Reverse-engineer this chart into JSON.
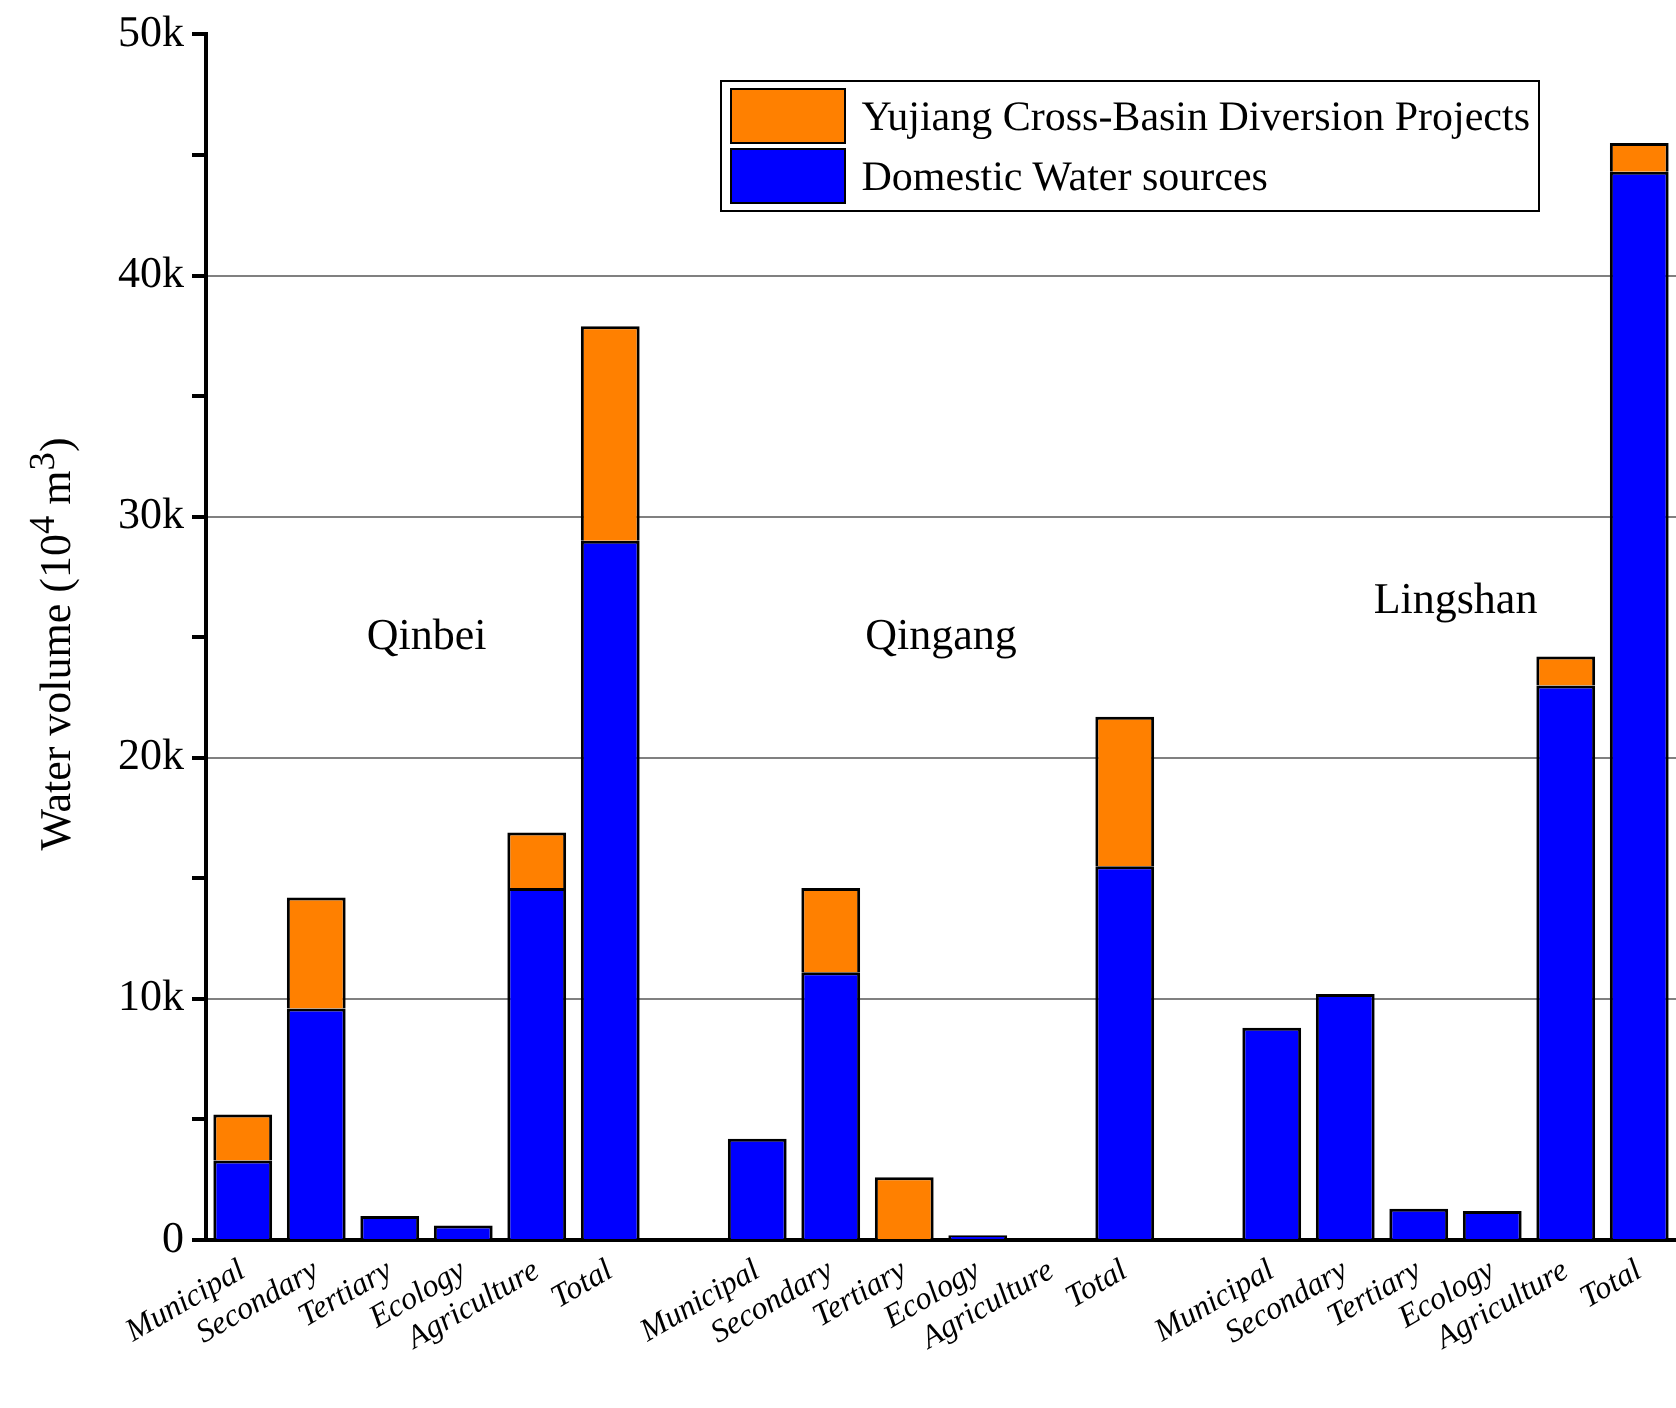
{
  "chart_data": {
    "type": "bar",
    "stacked": true,
    "ylabel": "Water volume (10$^{4}$ m$^{3}$)",
    "categories": [
      "Municipal",
      "Secondary",
      "Tertiary",
      "Ecology",
      "Agriculture",
      "Total",
      null,
      "Municipal",
      "Secondary",
      "Tertiary",
      "Ecology",
      "Agriculture",
      "Total",
      null,
      "Municipal",
      "Secondary",
      "Tertiary",
      "Ecology",
      "Agriculture",
      "Total"
    ],
    "series": [
      {
        "name": "Domestic Water sources",
        "color": "#0000ff",
        "values": [
          3300,
          9600,
          1000,
          600,
          14600,
          29000,
          null,
          4200,
          11100,
          0,
          200,
          0,
          15500,
          null,
          8800,
          10200,
          1300,
          1200,
          23000,
          44300
        ]
      },
      {
        "name": "Yujiang Cross-Basin Diversion Projects",
        "color": "#ff8000",
        "values": [
          1900,
          4600,
          null,
          null,
          2300,
          8900,
          null,
          null,
          3500,
          2600,
          null,
          null,
          6200,
          null,
          null,
          null,
          null,
          null,
          1200,
          1200
        ]
      }
    ],
    "ylim": [
      0,
      50000
    ],
    "yticks": [
      {
        "value": 0,
        "label": "0"
      },
      {
        "value": 5000,
        "label": null
      },
      {
        "value": 10000,
        "label": "10k"
      },
      {
        "value": 15000,
        "label": null
      },
      {
        "value": 20000,
        "label": "20k"
      },
      {
        "value": 25000,
        "label": null
      },
      {
        "value": 30000,
        "label": "30k"
      },
      {
        "value": 35000,
        "label": null
      },
      {
        "value": 40000,
        "label": "40k"
      },
      {
        "value": 45000,
        "label": null
      },
      {
        "value": 50000,
        "label": "50k"
      }
    ],
    "grid": "y",
    "legend": "top right",
    "annotations": [
      "Qinbei",
      "Qingang",
      "Lingshan"
    ]
  }
}
